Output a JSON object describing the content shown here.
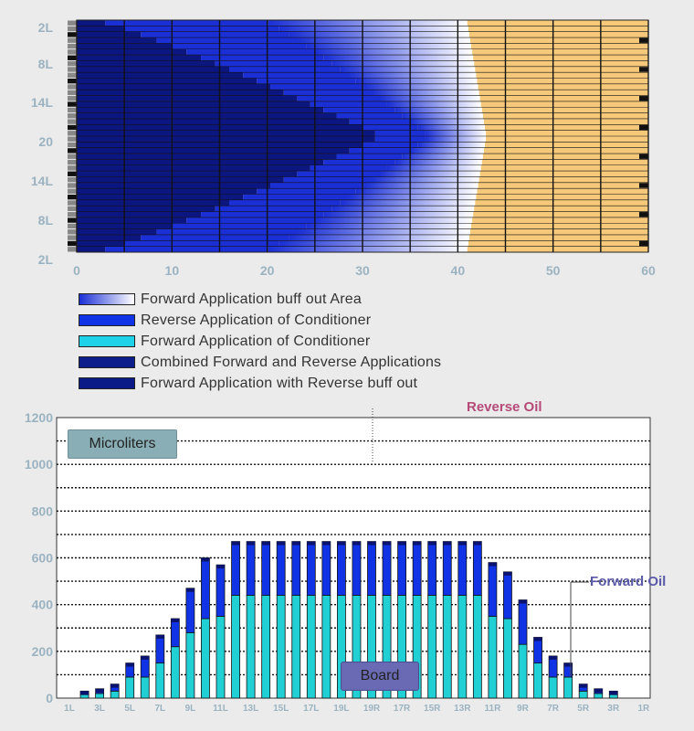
{
  "top_chart": {
    "y_tick_labels": [
      "2L",
      "8L",
      "14L",
      "20",
      "14L",
      "8L",
      "2L"
    ],
    "x_tick_labels": [
      "0",
      "10",
      "20",
      "30",
      "40",
      "50",
      "60"
    ],
    "colors": {
      "background": "#f6c97a",
      "dark": "#0c1680",
      "mid": "#1a2fd6",
      "light": "#ffffff"
    },
    "rows": 40
  },
  "legend": [
    {
      "label": "Forward Application buff out Area",
      "swatch": "gradient"
    },
    {
      "label": "Reverse Application of Conditioner",
      "swatch": "#1133e6"
    },
    {
      "label": "Forward Application of Conditioner",
      "swatch": "#1ed2ea"
    },
    {
      "label": "Combined Forward and Reverse Applications",
      "swatch": "#0c1f8a"
    },
    {
      "label": "Forward Application with Reverse buff out",
      "swatch": "#0a1a86"
    }
  ],
  "annotations": {
    "microliters": "Microliters",
    "board": "Board",
    "reverse_oil": "Reverse Oil",
    "forward_oil": "Forward Oil"
  },
  "chart_data": {
    "type": "bar",
    "stacked": true,
    "categories": [
      "1L",
      "2L",
      "3L",
      "4L",
      "5L",
      "6L",
      "7L",
      "8L",
      "9L",
      "10L",
      "11L",
      "12L",
      "13L",
      "14L",
      "15L",
      "16L",
      "17L",
      "18L",
      "19L",
      "20",
      "19R",
      "18R",
      "17R",
      "16R",
      "15R",
      "14R",
      "13R",
      "12R",
      "11R",
      "10R",
      "9R",
      "8R",
      "7R",
      "6R",
      "5R",
      "4R",
      "3R",
      "2R",
      "1R"
    ],
    "x_tick_labels": [
      "1L",
      "3L",
      "5L",
      "7L",
      "9L",
      "11L",
      "13L",
      "15L",
      "17L",
      "19L",
      "19R",
      "17R",
      "15R",
      "13R",
      "11R",
      "9R",
      "7R",
      "5R",
      "3R",
      "1R"
    ],
    "y_tick_labels": [
      "0",
      "200",
      "400",
      "600",
      "800",
      "1000",
      "1200"
    ],
    "ylim": [
      0,
      1200
    ],
    "series": [
      {
        "name": "Forward Oil",
        "color": "#20d0d4",
        "values": [
          0,
          15,
          20,
          30,
          90,
          90,
          150,
          220,
          280,
          340,
          350,
          440,
          440,
          440,
          440,
          440,
          440,
          440,
          440,
          440,
          440,
          440,
          440,
          440,
          440,
          440,
          440,
          440,
          350,
          340,
          230,
          150,
          90,
          90,
          30,
          20,
          15,
          0,
          0
        ]
      },
      {
        "name": "Reverse Oil",
        "color": "#1133e6",
        "values": [
          0,
          15,
          20,
          30,
          60,
          90,
          120,
          120,
          190,
          260,
          220,
          230,
          230,
          230,
          230,
          230,
          230,
          230,
          230,
          230,
          230,
          230,
          230,
          230,
          230,
          230,
          230,
          230,
          230,
          200,
          190,
          110,
          90,
          60,
          30,
          20,
          15,
          0,
          0
        ]
      }
    ]
  }
}
